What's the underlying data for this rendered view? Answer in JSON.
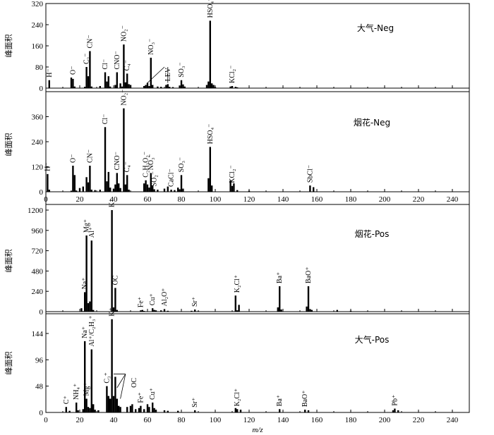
{
  "chart_data": [
    {
      "type": "bar",
      "title": "大气-Neg",
      "ylabel": "峰面积",
      "xlim": [
        0,
        250
      ],
      "ylim": [
        0,
        320
      ],
      "yticks": [
        0,
        80,
        160,
        240,
        320
      ],
      "values": [
        [
          2,
          30
        ],
        [
          15,
          40
        ],
        [
          16,
          35
        ],
        [
          17,
          6
        ],
        [
          23,
          5
        ],
        [
          24,
          80
        ],
        [
          25,
          45
        ],
        [
          26,
          140
        ],
        [
          27,
          6
        ],
        [
          32,
          8
        ],
        [
          35,
          60
        ],
        [
          36,
          25
        ],
        [
          37,
          45
        ],
        [
          38,
          6
        ],
        [
          41,
          12
        ],
        [
          42,
          60
        ],
        [
          44,
          18
        ],
        [
          45,
          6
        ],
        [
          46,
          165
        ],
        [
          47,
          22
        ],
        [
          48,
          55
        ],
        [
          49,
          15
        ],
        [
          50,
          12
        ],
        [
          58,
          8
        ],
        [
          59,
          12
        ],
        [
          60,
          20
        ],
        [
          61,
          8
        ],
        [
          62,
          115
        ],
        [
          63,
          12
        ],
        [
          66,
          6
        ],
        [
          68,
          5
        ],
        [
          71,
          12
        ],
        [
          72,
          15
        ],
        [
          73,
          5
        ],
        [
          75,
          4
        ],
        [
          79,
          10
        ],
        [
          80,
          30
        ],
        [
          81,
          14
        ],
        [
          82,
          6
        ],
        [
          95,
          12
        ],
        [
          96,
          25
        ],
        [
          97,
          255
        ],
        [
          98,
          18
        ],
        [
          99,
          12
        ],
        [
          100,
          4
        ],
        [
          109,
          6
        ],
        [
          110,
          8
        ],
        [
          112,
          5
        ],
        [
          113,
          3
        ]
      ],
      "labels": [
        {
          "text": "H⁻",
          "x": 2,
          "y": 30
        },
        {
          "text": "O⁻",
          "x": 16,
          "y": 40
        },
        {
          "text": "C₂⁻",
          "x": 24,
          "y": 80
        },
        {
          "text": "CN⁻",
          "x": 26,
          "y": 140
        },
        {
          "text": "Cl⁻",
          "x": 35,
          "y": 60
        },
        {
          "text": "CNO⁻",
          "x": 42,
          "y": 60
        },
        {
          "text": "NO₂⁻",
          "x": 46,
          "y": 165
        },
        {
          "text": "C₄⁻",
          "x": 48,
          "y": 55
        },
        {
          "text": "NO₃⁻",
          "x": 62,
          "y": 115
        },
        {
          "text": "LEV",
          "x": 72,
          "y": 15
        },
        {
          "text": "SO₃⁻",
          "x": 80,
          "y": 30
        },
        {
          "text": "HSO₄⁻",
          "x": 97,
          "y": 255
        },
        {
          "text": "KCl₂⁻",
          "x": 110,
          "y": 8
        }
      ]
    },
    {
      "type": "bar",
      "title": "烟花-Neg",
      "ylabel": "峰面积",
      "xlim": [
        0,
        250
      ],
      "ylim": [
        0,
        480
      ],
      "yticks": [
        0,
        120,
        240,
        360
      ],
      "values": [
        [
          1,
          85
        ],
        [
          2,
          10
        ],
        [
          15,
          5
        ],
        [
          16,
          125
        ],
        [
          17,
          80
        ],
        [
          18,
          6
        ],
        [
          20,
          18
        ],
        [
          22,
          25
        ],
        [
          24,
          70
        ],
        [
          25,
          45
        ],
        [
          26,
          125
        ],
        [
          27,
          10
        ],
        [
          29,
          8
        ],
        [
          32,
          10
        ],
        [
          35,
          310
        ],
        [
          36,
          50
        ],
        [
          37,
          95
        ],
        [
          38,
          20
        ],
        [
          40,
          15
        ],
        [
          41,
          35
        ],
        [
          42,
          90
        ],
        [
          43,
          40
        ],
        [
          44,
          18
        ],
        [
          46,
          400
        ],
        [
          47,
          35
        ],
        [
          48,
          80
        ],
        [
          49,
          10
        ],
        [
          58,
          40
        ],
        [
          59,
          55
        ],
        [
          60,
          35
        ],
        [
          61,
          20
        ],
        [
          62,
          90
        ],
        [
          63,
          30
        ],
        [
          64,
          12
        ],
        [
          66,
          10
        ],
        [
          70,
          15
        ],
        [
          72,
          25
        ],
        [
          74,
          10
        ],
        [
          76,
          8
        ],
        [
          78,
          20
        ],
        [
          79,
          12
        ],
        [
          80,
          80
        ],
        [
          81,
          15
        ],
        [
          96,
          65
        ],
        [
          97,
          215
        ],
        [
          98,
          30
        ],
        [
          109,
          55
        ],
        [
          110,
          28
        ],
        [
          111,
          40
        ],
        [
          113,
          8
        ],
        [
          120,
          5
        ],
        [
          156,
          30
        ],
        [
          158,
          22
        ]
      ],
      "labels": [
        {
          "text": "H⁻",
          "x": 1,
          "y": 85
        },
        {
          "text": "O⁻",
          "x": 16,
          "y": 125
        },
        {
          "text": "CN⁻",
          "x": 26,
          "y": 125
        },
        {
          "text": "Cl⁻",
          "x": 35,
          "y": 310
        },
        {
          "text": "CNO⁻",
          "x": 42,
          "y": 90
        },
        {
          "text": "NO₂⁻",
          "x": 46,
          "y": 400
        },
        {
          "text": "C₄⁻",
          "x": 48,
          "y": 80
        },
        {
          "text": "C₂H₃O₂⁻",
          "x": 59,
          "y": 55
        },
        {
          "text": "NO₃⁻",
          "x": 62,
          "y": 90
        },
        {
          "text": "SO₂⁻",
          "x": 64,
          "y": 12
        },
        {
          "text": "CaCl⁻",
          "x": 74,
          "y": 10
        },
        {
          "text": "SO₃⁻",
          "x": 80,
          "y": 80
        },
        {
          "text": "HSO₄⁻",
          "x": 97,
          "y": 215
        },
        {
          "text": "KCl₂⁻",
          "x": 110,
          "y": 28
        },
        {
          "text": "SbCl⁻",
          "x": 156,
          "y": 30
        }
      ]
    },
    {
      "type": "bar",
      "title": "烟花-Pos",
      "ylabel": "峰面积",
      "xlim": [
        0,
        250
      ],
      "ylim": [
        0,
        1200
      ],
      "yticks": [
        0,
        240,
        480,
        720,
        960,
        1200
      ],
      "values": [
        [
          21,
          40
        ],
        [
          22,
          6
        ],
        [
          23,
          230
        ],
        [
          24,
          900
        ],
        [
          25,
          100
        ],
        [
          26,
          120
        ],
        [
          27,
          840
        ],
        [
          28,
          20
        ],
        [
          39,
          1200
        ],
        [
          40,
          50
        ],
        [
          41,
          280
        ],
        [
          42,
          20
        ],
        [
          56,
          15
        ],
        [
          57,
          20
        ],
        [
          58,
          8
        ],
        [
          63,
          40
        ],
        [
          64,
          20
        ],
        [
          65,
          15
        ],
        [
          68,
          15
        ],
        [
          70,
          30
        ],
        [
          72,
          10
        ],
        [
          86,
          10
        ],
        [
          88,
          25
        ],
        [
          90,
          6
        ],
        [
          112,
          190
        ],
        [
          113,
          15
        ],
        [
          114,
          80
        ],
        [
          137,
          50
        ],
        [
          138,
          300
        ],
        [
          139,
          25
        ],
        [
          154,
          60
        ],
        [
          155,
          300
        ],
        [
          156,
          30
        ],
        [
          157,
          20
        ],
        [
          172,
          20
        ],
        [
          180,
          10
        ]
      ],
      "labels": [
        {
          "text": "Na⁺",
          "x": 23,
          "y": 230
        },
        {
          "text": "Mg⁺",
          "x": 24,
          "y": 900
        },
        {
          "text": "Al⁺",
          "x": 27,
          "y": 840
        },
        {
          "text": "K⁺",
          "x": 39,
          "y": 1200
        },
        {
          "text": "OC",
          "x": 41,
          "y": 280
        },
        {
          "text": "Fe⁺",
          "x": 56,
          "y": 15
        },
        {
          "text": "Cu⁺",
          "x": 63,
          "y": 40
        },
        {
          "text": "Al₂O⁺",
          "x": 70,
          "y": 30
        },
        {
          "text": "Sr⁺",
          "x": 88,
          "y": 25
        },
        {
          "text": "K₂Cl⁺",
          "x": 113,
          "y": 190
        },
        {
          "text": "Ba⁺",
          "x": 138,
          "y": 300
        },
        {
          "text": "BaO⁺",
          "x": 155,
          "y": 300
        }
      ]
    },
    {
      "type": "bar",
      "title": "大气-Pos",
      "ylabel": "峰面积",
      "xlabel": "m/z",
      "xlim": [
        0,
        250
      ],
      "ylim": [
        0,
        180
      ],
      "yticks": [
        0,
        48,
        96,
        144
      ],
      "xticks": [
        0,
        20,
        40,
        60,
        80,
        100,
        120,
        140,
        160,
        180,
        200,
        220,
        240
      ],
      "values": [
        [
          12,
          10
        ],
        [
          14,
          3
        ],
        [
          18,
          18
        ],
        [
          19,
          4
        ],
        [
          22,
          6
        ],
        [
          23,
          130
        ],
        [
          24,
          25
        ],
        [
          25,
          10
        ],
        [
          26,
          8
        ],
        [
          27,
          115
        ],
        [
          28,
          15
        ],
        [
          29,
          5
        ],
        [
          31,
          4
        ],
        [
          36,
          48
        ],
        [
          37,
          30
        ],
        [
          38,
          25
        ],
        [
          39,
          170
        ],
        [
          40,
          30
        ],
        [
          41,
          65
        ],
        [
          42,
          25
        ],
        [
          43,
          12
        ],
        [
          44,
          10
        ],
        [
          48,
          10
        ],
        [
          50,
          12
        ],
        [
          51,
          15
        ],
        [
          53,
          6
        ],
        [
          55,
          8
        ],
        [
          56,
          12
        ],
        [
          58,
          6
        ],
        [
          60,
          15
        ],
        [
          61,
          10
        ],
        [
          63,
          18
        ],
        [
          64,
          8
        ],
        [
          65,
          5
        ],
        [
          70,
          4
        ],
        [
          72,
          3
        ],
        [
          78,
          3
        ],
        [
          88,
          4
        ],
        [
          112,
          8
        ],
        [
          113,
          6
        ],
        [
          115,
          5
        ],
        [
          138,
          6
        ],
        [
          153,
          5
        ],
        [
          155,
          4
        ],
        [
          205,
          4
        ],
        [
          206,
          7
        ],
        [
          208,
          4
        ]
      ],
      "labels": [
        {
          "text": "C⁺",
          "x": 12,
          "y": 10
        },
        {
          "text": "NH₄⁺",
          "x": 18,
          "y": 18
        },
        {
          "text": "Na⁺",
          "x": 23,
          "y": 130
        },
        {
          "text": "Mg⁺",
          "x": 24,
          "y": 25
        },
        {
          "text": "Al⁺/C₂H₃⁺",
          "x": 27,
          "y": 115
        },
        {
          "text": "C₃⁺",
          "x": 36,
          "y": 48
        },
        {
          "text": "K⁺",
          "x": 39,
          "y": 170
        },
        {
          "text": "OC",
          "x": 52,
          "y": 40
        },
        {
          "text": "Fe⁺",
          "x": 56,
          "y": 12
        },
        {
          "text": "Cu⁺",
          "x": 63,
          "y": 18
        },
        {
          "text": "Sr⁺",
          "x": 88,
          "y": 4
        },
        {
          "text": "K₂Cl⁺",
          "x": 113,
          "y": 6
        },
        {
          "text": "Ba⁺",
          "x": 138,
          "y": 6
        },
        {
          "text": "BaO⁺",
          "x": 153,
          "y": 5
        },
        {
          "text": "Pb⁺",
          "x": 206,
          "y": 7
        }
      ]
    }
  ]
}
